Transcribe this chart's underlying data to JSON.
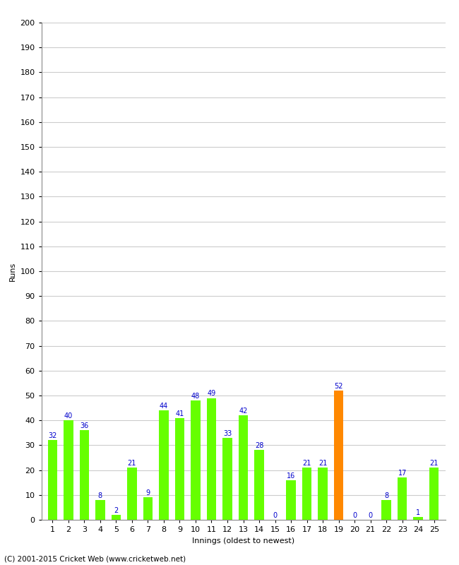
{
  "innings": [
    1,
    2,
    3,
    4,
    5,
    6,
    7,
    8,
    9,
    10,
    11,
    12,
    13,
    14,
    15,
    16,
    17,
    18,
    19,
    20,
    21,
    22,
    23,
    24,
    25
  ],
  "values": [
    32,
    40,
    36,
    8,
    2,
    21,
    9,
    44,
    41,
    48,
    49,
    33,
    42,
    28,
    0,
    16,
    21,
    21,
    52,
    0,
    0,
    8,
    17,
    1,
    21
  ],
  "bar_colors": [
    "#66ff00",
    "#66ff00",
    "#66ff00",
    "#66ff00",
    "#66ff00",
    "#66ff00",
    "#66ff00",
    "#66ff00",
    "#66ff00",
    "#66ff00",
    "#66ff00",
    "#66ff00",
    "#66ff00",
    "#66ff00",
    "#66ff00",
    "#66ff00",
    "#66ff00",
    "#66ff00",
    "#ff8800",
    "#66ff00",
    "#66ff00",
    "#66ff00",
    "#66ff00",
    "#66ff00",
    "#66ff00"
  ],
  "label_color": "#0000cc",
  "xlabel": "Innings (oldest to newest)",
  "ylabel": "Runs",
  "ylim": [
    0,
    200
  ],
  "yticks": [
    0,
    10,
    20,
    30,
    40,
    50,
    60,
    70,
    80,
    90,
    100,
    110,
    120,
    130,
    140,
    150,
    160,
    170,
    180,
    190,
    200
  ],
  "background_color": "#ffffff",
  "grid_color": "#cccccc",
  "footer": "(C) 2001-2015 Cricket Web (www.cricketweb.net)",
  "bar_width": 0.6,
  "label_fontsize": 7,
  "axis_fontsize": 8,
  "tick_fontsize": 8
}
